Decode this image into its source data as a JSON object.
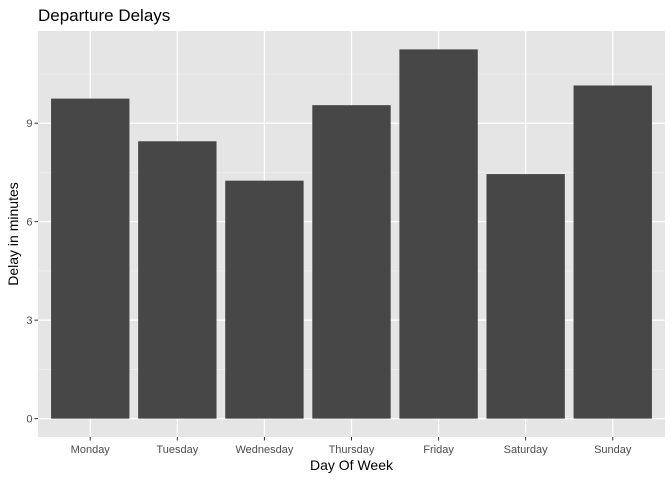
{
  "chart_data": {
    "type": "bar",
    "title": "Departure Delays",
    "xlabel": "Day Of Week",
    "ylabel": "Delay in minutes",
    "categories": [
      "Monday",
      "Tuesday",
      "Wednesday",
      "Thursday",
      "Friday",
      "Saturday",
      "Sunday"
    ],
    "values": [
      9.75,
      8.45,
      7.25,
      9.55,
      11.25,
      7.45,
      10.15
    ],
    "y_ticks": [
      0,
      3,
      6,
      9
    ],
    "ylim": [
      -0.56,
      11.81
    ],
    "grid": true,
    "legend": "none",
    "colors": {
      "bar": "#474747",
      "panel_background": "#e5e5e5",
      "grid_major": "#ffffff",
      "grid_minor": "#f2f2f2",
      "tick_mark": "#333333",
      "tick_label": "#4d4d4d",
      "text": "#000000"
    }
  }
}
